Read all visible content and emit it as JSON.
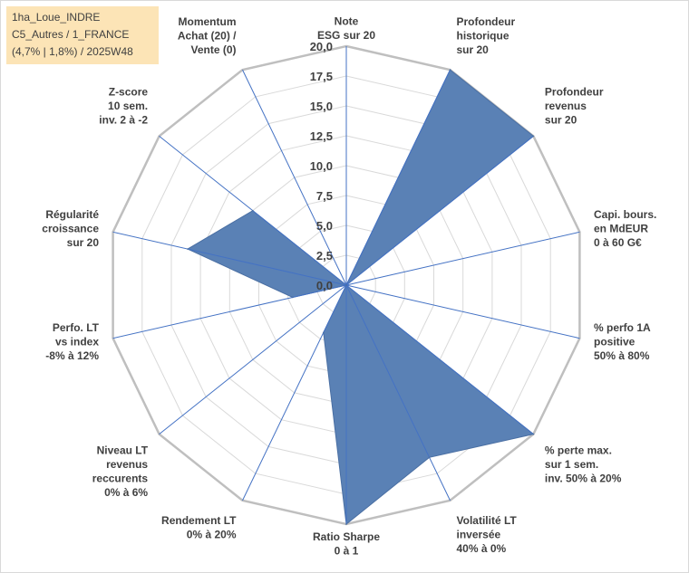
{
  "info": {
    "line1": "1ha_Loue_INDRE",
    "line2": "C5_Autres / 1_FRANCE",
    "line3": "(4,7% | 1,8%) / 2025W48"
  },
  "chart_data": {
    "type": "radar",
    "title": "",
    "rmin": 0,
    "rmax": 20,
    "ticks": [
      "0,0",
      "2,5",
      "5,0",
      "7,5",
      "10,0",
      "12,5",
      "15,0",
      "17,5",
      "20,0"
    ],
    "fill_color": "#5a81b5",
    "axes": [
      {
        "label": [
          "Note",
          "ESG sur 20"
        ],
        "value": 0
      },
      {
        "label": [
          "Profondeur",
          "historique",
          "sur 20"
        ],
        "value": 20
      },
      {
        "label": [
          "Profondeur",
          "revenus",
          "sur 20"
        ],
        "value": 20
      },
      {
        "label": [
          "Capi. bours.",
          "en MdEUR",
          "0 à 60 G€"
        ],
        "value": 0
      },
      {
        "label": [
          "% perfo 1A",
          "positive",
          "50% à 80%"
        ],
        "value": 0
      },
      {
        "label": [
          "% perte max.",
          "sur 1 sem.",
          "inv. 50% à 20%"
        ],
        "value": 20
      },
      {
        "label": [
          "Volatilité LT",
          "inversée",
          "40% à 0%"
        ],
        "value": 16
      },
      {
        "label": [
          "Ratio Sharpe",
          "0 à 1"
        ],
        "value": 20
      },
      {
        "label": [
          "Rendement LT",
          "0% à 20%"
        ],
        "value": 4.4
      },
      {
        "label": [
          "Niveau LT",
          "revenus",
          "reccurents",
          "0% à 6%"
        ],
        "value": 0
      },
      {
        "label": [
          "Perfo. LT",
          "vs index",
          "-8% à 12%"
        ],
        "value": 4.6
      },
      {
        "label": [
          "Régularité",
          "croissance",
          "sur 20"
        ],
        "value": 13.6
      },
      {
        "label": [
          "Z-score",
          "10 sem.",
          "inv. 2 à -2"
        ],
        "value": 10
      },
      {
        "label": [
          "Momentum",
          "Achat (20) /",
          "Vente (0)"
        ],
        "value": 0
      }
    ]
  }
}
